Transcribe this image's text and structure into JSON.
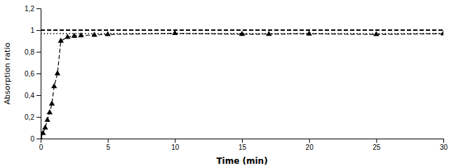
{
  "chart_data": {
    "type": "line",
    "xlabel": "Time (min)",
    "ylabel": "Absorption ratio",
    "x": [
      0,
      0.167,
      0.333,
      0.5,
      0.667,
      0.833,
      1.0,
      1.25,
      1.5,
      2.0,
      2.5,
      3.0,
      4.0,
      5.0,
      10.0,
      15.0,
      17.0,
      20.0,
      25.0,
      30.0
    ],
    "values": [
      0.0,
      0.05,
      0.1,
      0.17,
      0.24,
      0.32,
      0.48,
      0.6,
      0.9,
      0.935,
      0.945,
      0.95,
      0.955,
      0.96,
      0.97,
      0.962,
      0.963,
      0.966,
      0.96,
      0.967
    ],
    "color": "black",
    "marker": "triangle",
    "line_style": "dashed",
    "reference_lines": [
      {
        "value": 1.0,
        "line_style": "dashed",
        "color": "black"
      },
      {
        "value": 0.968,
        "line_style": "dotted",
        "color": "black"
      }
    ],
    "xlim": [
      0,
      30
    ],
    "ylim": [
      0,
      1.2
    ],
    "xticks": [
      0,
      5,
      10,
      15,
      20,
      25,
      30
    ],
    "yticks": [
      0,
      {
        "value": 0.2,
        "label": "0,2"
      },
      {
        "value": 0.4,
        "label": "0,4"
      },
      {
        "value": 0.6,
        "label": "0,6"
      },
      {
        "value": 0.8,
        "label": "0,8"
      },
      1,
      {
        "value": 1.2,
        "label": "1,2"
      }
    ],
    "grid": false
  }
}
